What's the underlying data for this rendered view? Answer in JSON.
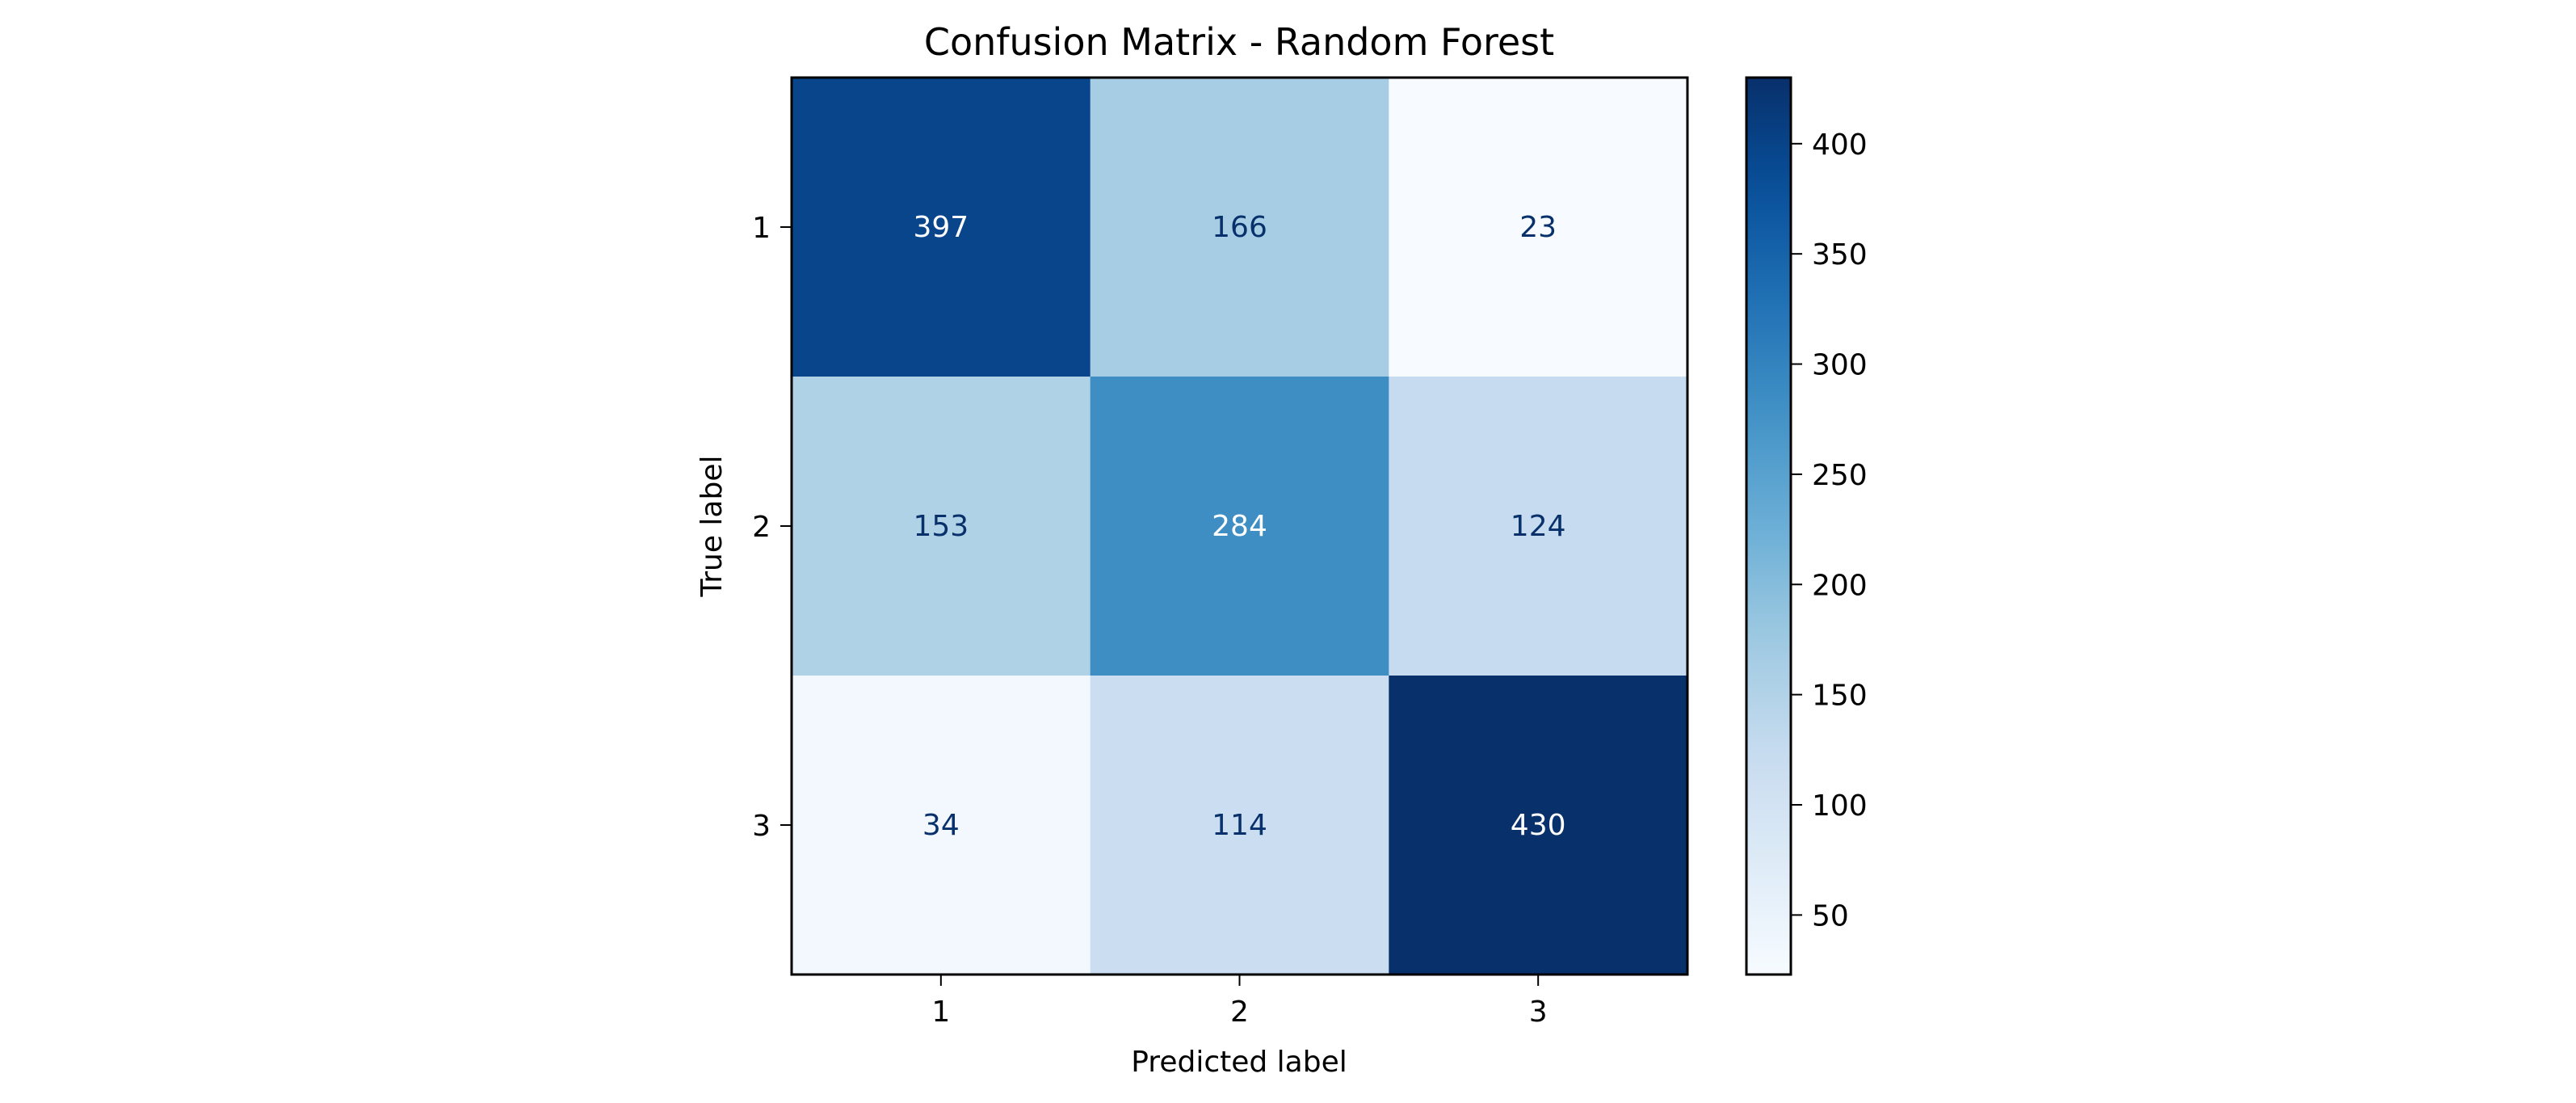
{
  "chart_data": {
    "type": "heatmap",
    "title": "Confusion Matrix - Random Forest",
    "xlabel": "Predicted label",
    "ylabel": "True label",
    "x_categories": [
      "1",
      "2",
      "3"
    ],
    "y_categories": [
      "1",
      "2",
      "3"
    ],
    "values": [
      [
        397,
        166,
        23
      ],
      [
        153,
        284,
        124
      ],
      [
        34,
        114,
        430
      ]
    ],
    "colormap": "Blues",
    "colorbar": {
      "range": [
        23,
        430
      ],
      "ticks": [
        50,
        100,
        150,
        200,
        250,
        300,
        350,
        400
      ],
      "tick_labels": [
        "50",
        "100",
        "150",
        "200",
        "250",
        "300",
        "350",
        "400"
      ]
    },
    "text_colors": {
      "light": "#ffffff",
      "dark": "#08306b"
    }
  }
}
